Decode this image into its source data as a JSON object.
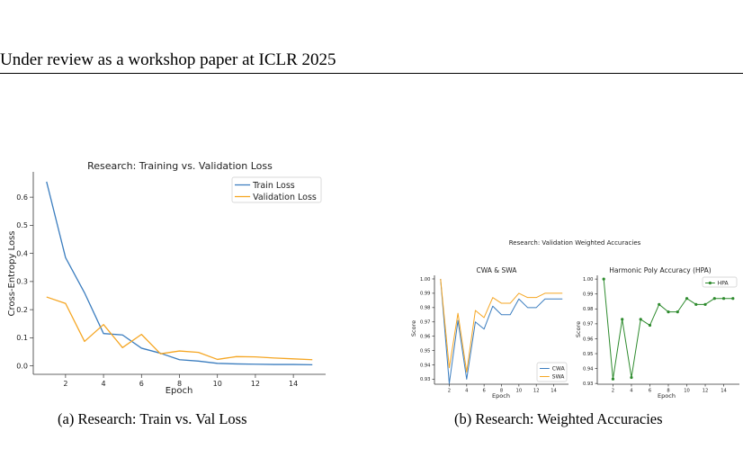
{
  "header": {
    "text": "Under review as a workshop paper at ICLR 2025"
  },
  "captions": {
    "a": "(a) Research: Train vs. Val Loss",
    "b": "(b) Research: Weighted Accuracies"
  },
  "colors": {
    "blue": "#3b7dbf",
    "orange": "#f5a623",
    "green": "#2e8b2e"
  },
  "chart_data": [
    {
      "type": "line",
      "title": "Research: Training vs. Validation Loss",
      "xlabel": "Epoch",
      "ylabel": "Cross-Entropy Loss",
      "xlim": [
        0.3,
        15.7
      ],
      "ylim": [
        -0.03,
        0.69
      ],
      "xticks": [
        2,
        4,
        6,
        8,
        10,
        12,
        14
      ],
      "yticks": [
        0.0,
        0.1,
        0.2,
        0.3,
        0.4,
        0.5,
        0.6
      ],
      "ytick_labels": [
        "0.0",
        "0.1",
        "0.2",
        "0.3",
        "0.4",
        "0.5",
        "0.6"
      ],
      "legend": "top-right",
      "x": [
        1,
        2,
        3,
        4,
        5,
        6,
        7,
        8,
        9,
        10,
        11,
        12,
        13,
        14,
        15
      ],
      "series": [
        {
          "name": "Train Loss",
          "color": "#3b7dbf",
          "values": [
            0.655,
            0.385,
            0.26,
            0.115,
            0.11,
            0.063,
            0.045,
            0.022,
            0.017,
            0.009,
            0.007,
            0.006,
            0.005,
            0.005,
            0.004
          ]
        },
        {
          "name": "Validation Loss",
          "color": "#f5a623",
          "values": [
            0.245,
            0.222,
            0.087,
            0.147,
            0.065,
            0.112,
            0.043,
            0.053,
            0.048,
            0.023,
            0.033,
            0.032,
            0.028,
            0.025,
            0.022
          ]
        }
      ]
    },
    {
      "type": "line",
      "suptitle": "Research: Validation Weighted Accuracies",
      "title": "CWA & SWA",
      "xlabel": "Epoch",
      "ylabel": "Score",
      "xlim": [
        0.3,
        15.7
      ],
      "ylim": [
        0.9265,
        1.0025
      ],
      "xticks": [
        2,
        4,
        6,
        8,
        10,
        12,
        14
      ],
      "yticks": [
        0.93,
        0.94,
        0.95,
        0.96,
        0.97,
        0.98,
        0.99,
        1.0
      ],
      "ytick_labels": [
        "0.93",
        "0.94",
        "0.95",
        "0.96",
        "0.97",
        "0.98",
        "0.99",
        "1.00"
      ],
      "legend": "bottom-right",
      "x": [
        1,
        2,
        3,
        4,
        5,
        6,
        7,
        8,
        9,
        10,
        11,
        12,
        13,
        14,
        15
      ],
      "series": [
        {
          "name": "CWA",
          "color": "#3b7dbf",
          "values": [
            1.0,
            0.927,
            0.971,
            0.93,
            0.97,
            0.965,
            0.981,
            0.975,
            0.975,
            0.986,
            0.98,
            0.98,
            0.986,
            0.986,
            0.986
          ]
        },
        {
          "name": "SWA",
          "color": "#f5a623",
          "values": [
            1.0,
            0.938,
            0.976,
            0.935,
            0.978,
            0.973,
            0.987,
            0.983,
            0.983,
            0.99,
            0.987,
            0.987,
            0.99,
            0.99,
            0.99
          ]
        }
      ]
    },
    {
      "type": "line",
      "title": "Harmonic Poly Accuracy (HPA)",
      "xlabel": "Epoch",
      "ylabel": "Score",
      "xlim": [
        0.3,
        15.7
      ],
      "ylim": [
        0.9295,
        1.0025
      ],
      "xticks": [
        2,
        4,
        6,
        8,
        10,
        12,
        14
      ],
      "yticks": [
        0.93,
        0.94,
        0.95,
        0.96,
        0.97,
        0.98,
        0.99,
        1.0
      ],
      "ytick_labels": [
        "0.93",
        "0.94",
        "0.95",
        "0.96",
        "0.97",
        "0.98",
        "0.99",
        "1.00"
      ],
      "legend": "top-right",
      "x": [
        1,
        2,
        3,
        4,
        5,
        6,
        7,
        8,
        9,
        10,
        11,
        12,
        13,
        14,
        15
      ],
      "series": [
        {
          "name": "HPA",
          "color": "#2e8b2e",
          "marker": "circle",
          "values": [
            1.0,
            0.933,
            0.973,
            0.934,
            0.973,
            0.969,
            0.983,
            0.978,
            0.978,
            0.987,
            0.983,
            0.983,
            0.987,
            0.987,
            0.987
          ]
        }
      ]
    }
  ]
}
